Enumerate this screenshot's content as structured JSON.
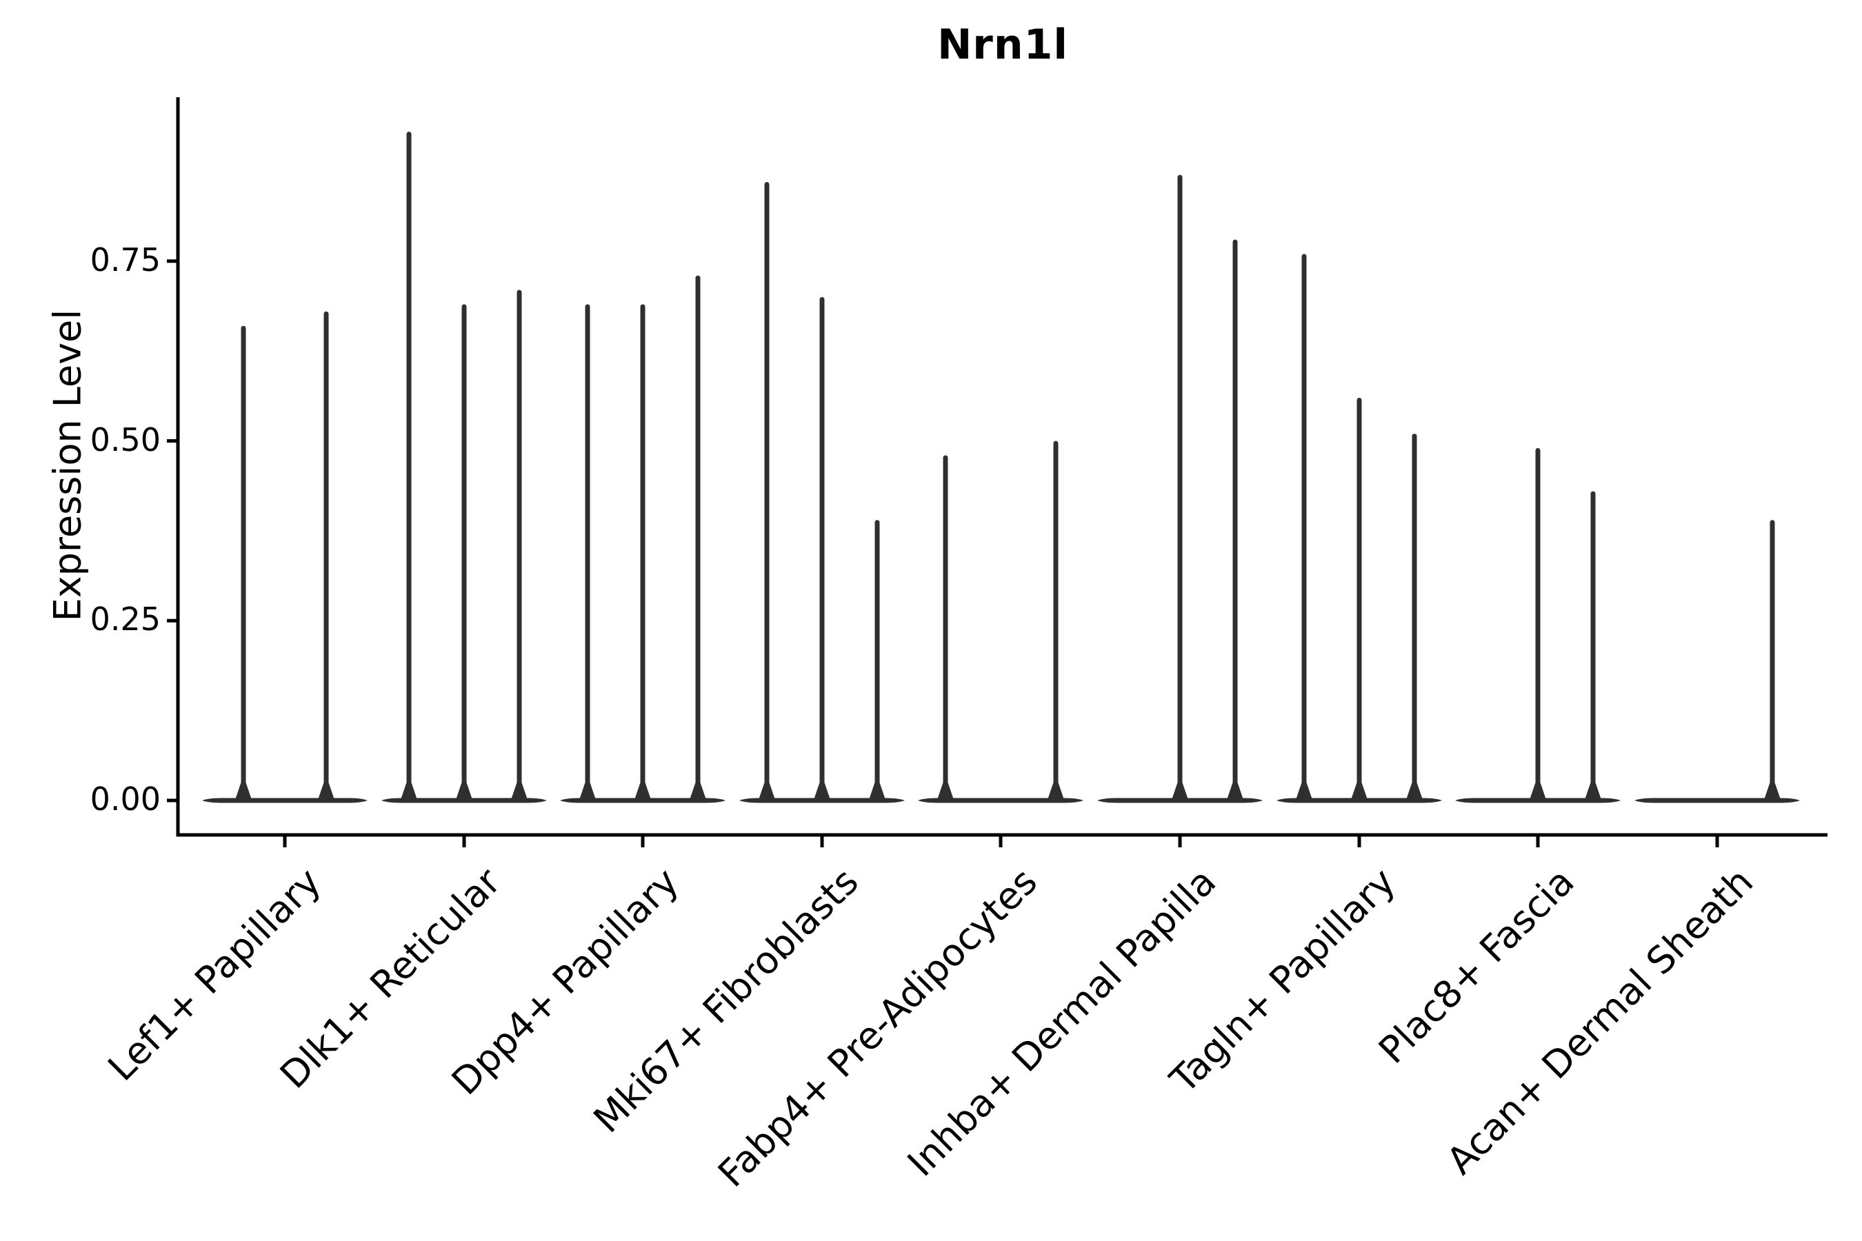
{
  "page": {
    "background": "#ffffff"
  },
  "chart_data": {
    "type": "violin",
    "title": "Nrn1l",
    "ylabel": "Expression Level",
    "xlabel": "",
    "ylim": [
      0,
      0.98
    ],
    "yticks": [
      "0.00",
      "0.25",
      "0.50",
      "0.75"
    ],
    "ytick_values": [
      0,
      0.25,
      0.5,
      0.75
    ],
    "grid": false,
    "legend": false,
    "violin_color": "#2f2f2f",
    "axis_color": "#000000",
    "categories": [
      "Lef1+ Papillary",
      "Dlk1+ Reticular",
      "Dpp4+ Papillary",
      "Mki67+ Fibroblasts",
      "Fabp4+ Pre-Adipocytes",
      "Inhba+ Dermal Papilla",
      "Tagln+ Papillary",
      "Plac8+ Fascia",
      "Acan+ Dermal Sheath"
    ],
    "violins": [
      {
        "category": "Lef1+ Papillary",
        "slots": 2,
        "points": [
          {
            "slot": 0,
            "max": 0.66
          },
          {
            "slot": 1,
            "max": 0.68
          }
        ]
      },
      {
        "category": "Dlk1+ Reticular",
        "slots": 3,
        "points": [
          {
            "slot": 0,
            "max": 0.93
          },
          {
            "slot": 1,
            "max": 0.69
          },
          {
            "slot": 2,
            "max": 0.71
          }
        ]
      },
      {
        "category": "Dpp4+ Papillary",
        "slots": 3,
        "points": [
          {
            "slot": 0,
            "max": 0.69
          },
          {
            "slot": 1,
            "max": 0.69
          },
          {
            "slot": 2,
            "max": 0.73
          }
        ]
      },
      {
        "category": "Mki67+ Fibroblasts",
        "slots": 3,
        "points": [
          {
            "slot": 0,
            "max": 0.86
          },
          {
            "slot": 1,
            "max": 0.7
          },
          {
            "slot": 2,
            "max": 0.39
          }
        ]
      },
      {
        "category": "Fabp4+ Pre-Adipocytes",
        "slots": 3,
        "points": [
          {
            "slot": 0,
            "max": 0.48
          },
          {
            "slot": 1,
            "max": 0
          },
          {
            "slot": 2,
            "max": 0.5
          }
        ]
      },
      {
        "category": "Inhba+ Dermal Papilla",
        "slots": 3,
        "points": [
          {
            "slot": 0,
            "max": 0
          },
          {
            "slot": 1,
            "max": 0.87
          },
          {
            "slot": 2,
            "max": 0.78
          }
        ]
      },
      {
        "category": "Tagln+ Papillary",
        "slots": 3,
        "points": [
          {
            "slot": 0,
            "max": 0.76
          },
          {
            "slot": 1,
            "max": 0.56
          },
          {
            "slot": 2,
            "max": 0.51
          }
        ]
      },
      {
        "category": "Plac8+ Fascia",
        "slots": 3,
        "points": [
          {
            "slot": 0,
            "max": 0
          },
          {
            "slot": 1,
            "max": 0.49
          },
          {
            "slot": 2,
            "max": 0.43
          }
        ]
      },
      {
        "category": "Acan+ Dermal Sheath",
        "slots": 3,
        "points": [
          {
            "slot": 0,
            "max": 0
          },
          {
            "slot": 1,
            "max": 0
          },
          {
            "slot": 2,
            "max": 0.39
          }
        ]
      }
    ]
  }
}
